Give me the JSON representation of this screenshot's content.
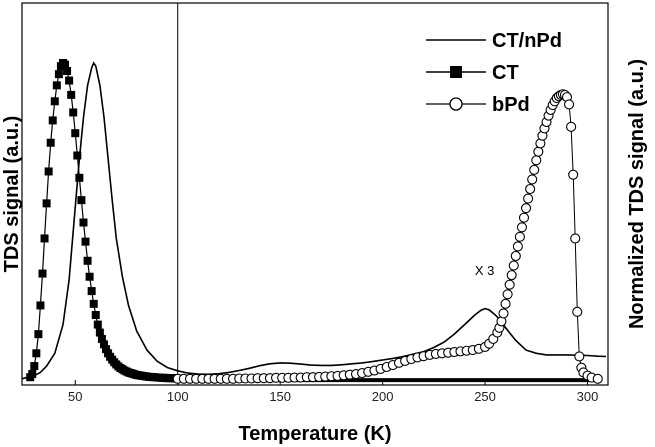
{
  "chart_data": {
    "type": "line",
    "xlabel": "Temperature (K)",
    "ylabel": "TDS signal (a.u.)",
    "y2label": "Normalized TDS signal (a.u.)",
    "xlim": [
      24,
      310
    ],
    "ylim": [
      0,
      1.0
    ],
    "xticks": [
      50,
      100,
      150,
      200,
      250,
      300
    ],
    "divider_x": 100,
    "annotation": {
      "text": "X 3",
      "x": 245,
      "y": 0.31
    },
    "legend_position": "top-right",
    "series": [
      {
        "name": "CT/nPd",
        "marker": "none",
        "x": [
          24,
          27,
          30,
          33,
          36,
          40,
          44,
          47,
          50,
          52,
          54,
          56,
          58,
          59,
          60,
          62,
          64,
          66,
          68,
          70,
          73,
          76,
          80,
          85,
          90,
          95,
          100,
          105,
          110,
          115,
          120,
          125,
          130,
          135,
          140,
          145,
          150,
          155,
          160,
          165,
          170,
          175,
          180,
          185,
          190,
          195,
          200,
          205,
          210,
          215,
          220,
          225,
          230,
          235,
          240,
          245,
          248,
          250,
          252,
          255,
          258,
          260,
          265,
          270,
          275,
          280,
          285,
          290,
          295,
          300,
          305,
          309
        ],
        "y": [
          0.01,
          0.015,
          0.02,
          0.03,
          0.05,
          0.09,
          0.18,
          0.32,
          0.55,
          0.7,
          0.83,
          0.93,
          0.985,
          1.0,
          0.99,
          0.93,
          0.83,
          0.7,
          0.57,
          0.45,
          0.33,
          0.24,
          0.16,
          0.1,
          0.065,
          0.045,
          0.035,
          0.028,
          0.025,
          0.024,
          0.026,
          0.03,
          0.036,
          0.043,
          0.051,
          0.057,
          0.06,
          0.059,
          0.056,
          0.053,
          0.052,
          0.052,
          0.054,
          0.057,
          0.06,
          0.064,
          0.069,
          0.074,
          0.08,
          0.087,
          0.095,
          0.108,
          0.125,
          0.15,
          0.18,
          0.21,
          0.225,
          0.23,
          0.226,
          0.21,
          0.19,
          0.17,
          0.13,
          0.1,
          0.09,
          0.085,
          0.085,
          0.085,
          0.084,
          0.083,
          0.081,
          0.08
        ]
      },
      {
        "name": "CT",
        "marker": "square",
        "x": [
          28,
          29,
          30,
          31,
          32,
          33,
          34,
          35,
          36,
          37,
          38,
          39,
          40,
          41,
          42,
          43,
          44,
          45,
          46,
          47,
          48,
          49,
          50,
          51,
          52,
          53,
          54,
          55,
          56,
          57,
          58,
          59,
          60,
          61,
          62,
          63,
          64,
          65,
          66,
          67,
          68,
          69,
          70,
          71,
          72,
          73,
          74,
          75,
          76,
          77,
          78,
          79,
          80,
          81,
          82,
          83,
          84,
          85,
          86,
          87,
          88,
          89,
          90,
          91,
          92,
          93,
          94,
          95,
          96,
          97,
          98,
          99,
          100
        ],
        "y": [
          0.015,
          0.025,
          0.05,
          0.09,
          0.15,
          0.24,
          0.34,
          0.45,
          0.56,
          0.66,
          0.75,
          0.82,
          0.88,
          0.93,
          0.965,
          0.99,
          1.0,
          0.995,
          0.975,
          0.945,
          0.9,
          0.845,
          0.78,
          0.71,
          0.64,
          0.57,
          0.5,
          0.44,
          0.38,
          0.33,
          0.285,
          0.245,
          0.21,
          0.18,
          0.155,
          0.135,
          0.118,
          0.103,
          0.09,
          0.079,
          0.07,
          0.062,
          0.055,
          0.049,
          0.044,
          0.04,
          0.036,
          0.033,
          0.03,
          0.028,
          0.026,
          0.024,
          0.022,
          0.021,
          0.02,
          0.019,
          0.018,
          0.017,
          0.016,
          0.016,
          0.015,
          0.015,
          0.014,
          0.014,
          0.013,
          0.013,
          0.013,
          0.012,
          0.012,
          0.012,
          0.012,
          0.011,
          0.011
        ],
        "tail_x": [
          100,
          305
        ],
        "tail_y": 0.006
      },
      {
        "name": "bPd",
        "marker": "circle",
        "x": [
          100,
          103,
          106,
          109,
          112,
          115,
          118,
          121,
          124,
          127,
          130,
          133,
          136,
          139,
          142,
          145,
          148,
          151,
          154,
          157,
          160,
          163,
          166,
          169,
          172,
          175,
          178,
          181,
          184,
          187,
          190,
          193,
          196,
          199,
          202,
          205,
          208,
          211,
          214,
          217,
          220,
          223,
          226,
          229,
          232,
          235,
          238,
          241,
          244,
          247,
          250,
          252,
          254,
          256,
          257,
          258,
          259,
          260,
          261,
          262,
          263,
          264,
          265,
          266,
          267,
          268,
          269,
          270,
          271,
          272,
          273,
          274,
          275,
          276,
          277,
          278,
          279,
          280,
          281,
          282,
          283,
          284,
          285,
          286,
          287,
          288,
          289,
          290,
          291,
          292,
          293,
          294,
          295,
          296,
          297,
          298,
          300,
          302,
          305
        ],
        "y": [
          0.01,
          0.01,
          0.01,
          0.01,
          0.01,
          0.01,
          0.01,
          0.01,
          0.01,
          0.01,
          0.011,
          0.011,
          0.011,
          0.012,
          0.012,
          0.012,
          0.013,
          0.013,
          0.013,
          0.014,
          0.014,
          0.015,
          0.015,
          0.016,
          0.017,
          0.018,
          0.019,
          0.021,
          0.023,
          0.025,
          0.028,
          0.032,
          0.036,
          0.041,
          0.047,
          0.053,
          0.06,
          0.066,
          0.072,
          0.077,
          0.081,
          0.085,
          0.088,
          0.09,
          0.092,
          0.094,
          0.096,
          0.098,
          0.1,
          0.104,
          0.11,
          0.12,
          0.135,
          0.155,
          0.17,
          0.19,
          0.215,
          0.245,
          0.275,
          0.305,
          0.335,
          0.365,
          0.395,
          0.425,
          0.455,
          0.485,
          0.515,
          0.545,
          0.575,
          0.605,
          0.635,
          0.665,
          0.695,
          0.722,
          0.748,
          0.772,
          0.795,
          0.815,
          0.835,
          0.853,
          0.868,
          0.88,
          0.89,
          0.896,
          0.9,
          0.902,
          0.9,
          0.893,
          0.87,
          0.8,
          0.65,
          0.45,
          0.22,
          0.08,
          0.045,
          0.03,
          0.02,
          0.014,
          0.01
        ]
      }
    ]
  }
}
